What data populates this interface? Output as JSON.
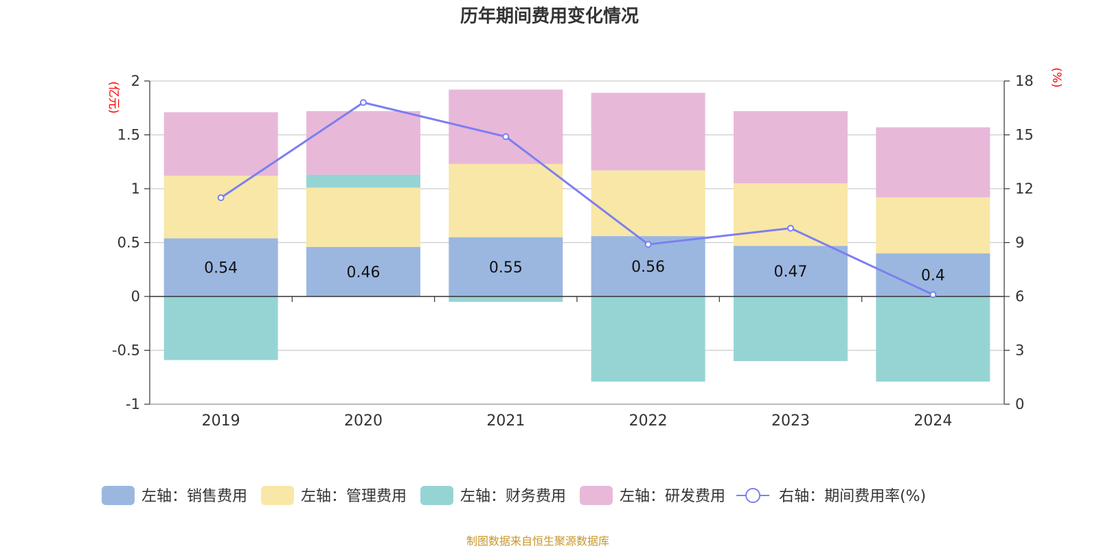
{
  "chart_data": {
    "type": "bar",
    "title": "历年期间费用变化情况",
    "categories": [
      "2019",
      "2020",
      "2021",
      "2022",
      "2023",
      "2024"
    ],
    "left_axis": {
      "unit": "(亿元)",
      "ylim": [
        -1,
        2
      ],
      "ticks": [
        "-1",
        "-0.5",
        "0",
        "0.5",
        "1",
        "1.5",
        "2"
      ],
      "tick_values": [
        -1,
        -0.5,
        0,
        0.5,
        1,
        1.5,
        2
      ]
    },
    "right_axis": {
      "unit": "(%)",
      "ylim": [
        0,
        18
      ],
      "ticks": [
        "0",
        "3",
        "6",
        "9",
        "12",
        "15",
        "18"
      ],
      "tick_values": [
        0,
        3,
        6,
        9,
        12,
        15,
        18
      ]
    },
    "series": [
      {
        "name": "左轴：销售费用",
        "axis": "left",
        "kind": "bar",
        "color": "#9bb7e0",
        "values": [
          0.54,
          0.46,
          0.55,
          0.56,
          0.47,
          0.4
        ],
        "labels": [
          "0.54",
          "0.46",
          "0.55",
          "0.56",
          "0.47",
          "0.4"
        ]
      },
      {
        "name": "左轴：管理费用",
        "axis": "left",
        "kind": "bar",
        "color": "#f8e7a6",
        "values": [
          0.58,
          0.55,
          0.68,
          0.61,
          0.58,
          0.52
        ]
      },
      {
        "name": "左轴：财务费用",
        "axis": "left",
        "kind": "bar",
        "color": "#96d4d4",
        "values": [
          -0.59,
          0.12,
          -0.05,
          -0.79,
          -0.6,
          -0.79
        ]
      },
      {
        "name": "左轴：研发费用",
        "axis": "left",
        "kind": "bar",
        "color": "#e8b8d9",
        "values": [
          0.59,
          0.59,
          0.69,
          0.72,
          0.67,
          0.65
        ]
      },
      {
        "name": "右轴：期间费用率(%)",
        "axis": "right",
        "kind": "line",
        "color": "#7b7ff0",
        "values": [
          11.5,
          16.8,
          14.9,
          8.9,
          9.8,
          6.1
        ]
      }
    ],
    "source": "制图数据来自恒生聚源数据库",
    "source_color": "#c8962a"
  }
}
